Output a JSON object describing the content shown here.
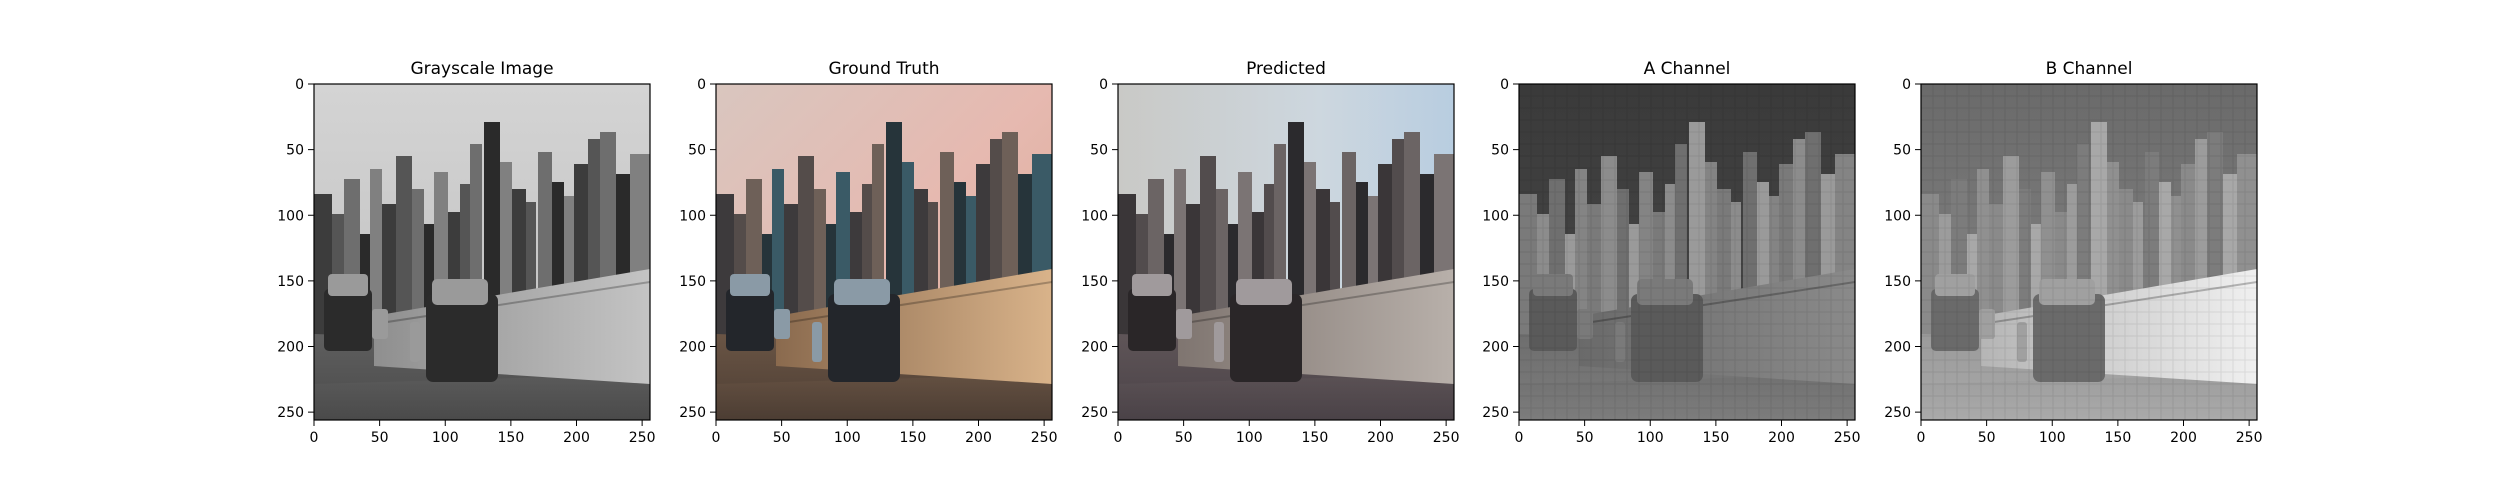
{
  "panels": [
    {
      "title": "Grayscale Image",
      "mode": "gray",
      "xticks": [
        "0",
        "50",
        "100",
        "150",
        "200",
        "250"
      ],
      "yticks": [
        "0",
        "50",
        "100",
        "150",
        "200",
        "250"
      ]
    },
    {
      "title": "Ground Truth",
      "mode": "truth",
      "xticks": [
        "0",
        "50",
        "100",
        "150",
        "200",
        "250"
      ],
      "yticks": [
        "0",
        "50",
        "100",
        "150",
        "200",
        "250"
      ]
    },
    {
      "title": "Predicted",
      "mode": "pred",
      "xticks": [
        "0",
        "50",
        "100",
        "150",
        "200",
        "250"
      ],
      "yticks": [
        "0",
        "50",
        "100",
        "150",
        "200",
        "250"
      ]
    },
    {
      "title": "A Channel",
      "mode": "achan",
      "xticks": [
        "0",
        "50",
        "100",
        "150",
        "200",
        "250"
      ],
      "yticks": [
        "0",
        "50",
        "100",
        "150",
        "200",
        "250"
      ]
    },
    {
      "title": "B Channel",
      "mode": "bchan",
      "xticks": [
        "0",
        "50",
        "100",
        "150",
        "200",
        "250"
      ],
      "yticks": [
        "0",
        "50",
        "100",
        "150",
        "200",
        "250"
      ]
    }
  ],
  "tick_values": [
    0,
    50,
    100,
    150,
    200,
    250
  ],
  "axis_extent": [
    0,
    256
  ]
}
